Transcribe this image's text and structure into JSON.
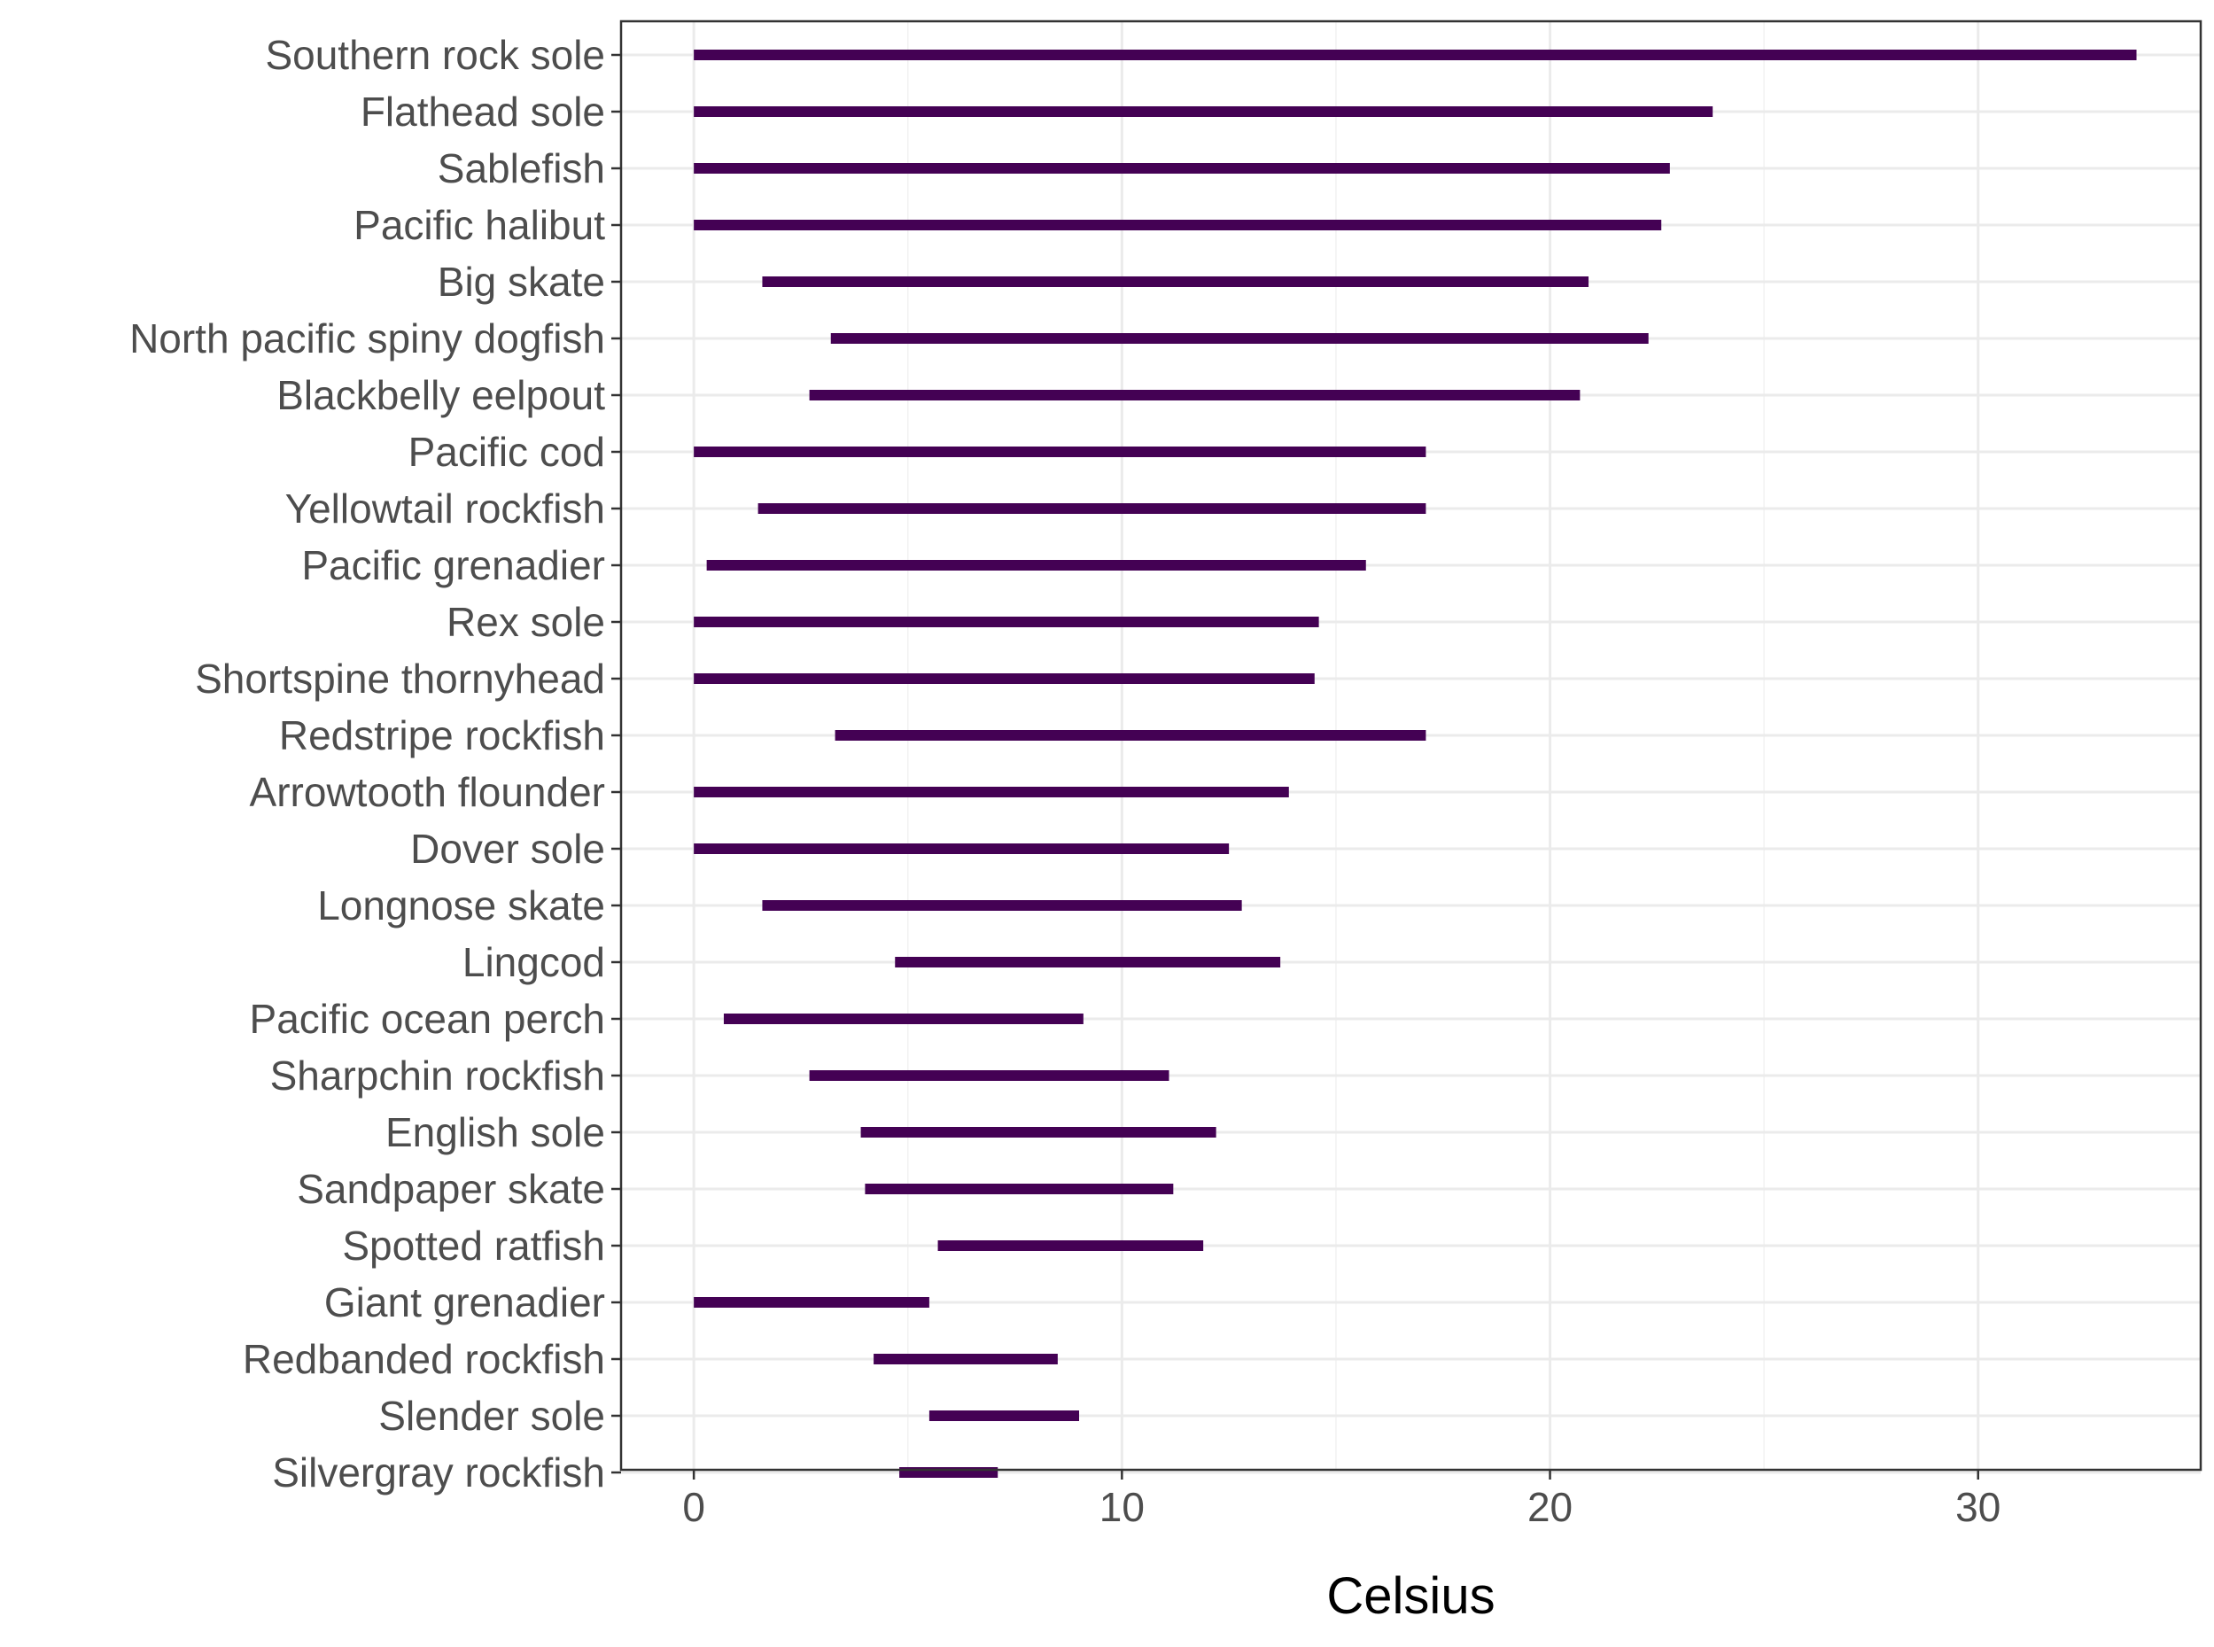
{
  "chart_data": {
    "type": "range-bar",
    "xlabel": "Celsius",
    "ylabel": "",
    "xlim": [
      -1.7,
      35.2
    ],
    "x_ticks": [
      0,
      10,
      20,
      30
    ],
    "x_minor_ticks": [
      5,
      15,
      25
    ],
    "grid": true,
    "bar_color": "#440154",
    "categories": [
      "Southern rock sole",
      "Flathead sole",
      "Sablefish",
      "Pacific halibut",
      "Big skate",
      "North pacific spiny dogfish",
      "Blackbelly eelpout",
      "Pacific cod",
      "Yellowtail rockfish",
      "Pacific grenadier",
      "Rex sole",
      "Shortspine thornyhead",
      "Redstripe rockfish",
      "Arrowtooth flounder",
      "Dover sole",
      "Longnose skate",
      "Lingcod",
      "Pacific ocean perch",
      "Sharpchin rockfish",
      "English sole",
      "Sandpaper skate",
      "Spotted ratfish",
      "Giant grenadier",
      "Redbanded rockfish",
      "Slender sole",
      "Silvergray rockfish"
    ],
    "ranges": [
      [
        0.0,
        33.7
      ],
      [
        0.0,
        23.8
      ],
      [
        0.0,
        22.8
      ],
      [
        0.0,
        22.6
      ],
      [
        1.6,
        20.9
      ],
      [
        3.2,
        22.3
      ],
      [
        2.7,
        20.7
      ],
      [
        0.0,
        17.1
      ],
      [
        1.5,
        17.1
      ],
      [
        0.3,
        15.7
      ],
      [
        0.0,
        14.6
      ],
      [
        0.0,
        14.5
      ],
      [
        3.3,
        17.1
      ],
      [
        0.0,
        13.9
      ],
      [
        0.0,
        12.5
      ],
      [
        1.6,
        12.8
      ],
      [
        4.7,
        13.7
      ],
      [
        0.7,
        9.1
      ],
      [
        2.7,
        11.1
      ],
      [
        3.9,
        12.2
      ],
      [
        4.0,
        11.2
      ],
      [
        5.7,
        11.9
      ],
      [
        0.0,
        5.5
      ],
      [
        4.2,
        8.5
      ],
      [
        5.5,
        9.0
      ],
      [
        4.8,
        7.1
      ]
    ]
  }
}
